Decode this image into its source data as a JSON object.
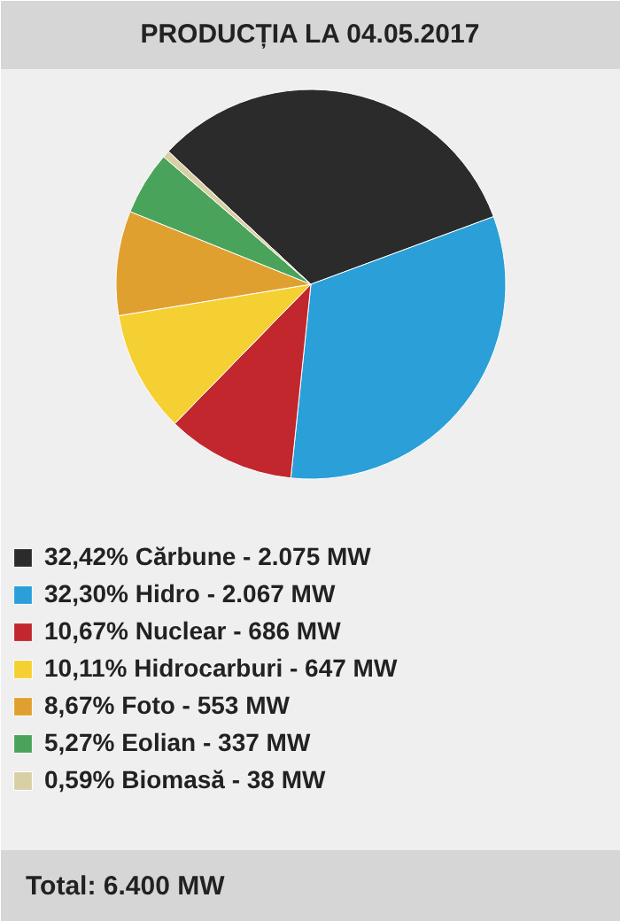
{
  "chart_data": {
    "type": "pie",
    "title": "PRODUCȚIA LA 04.05.2017",
    "categories": [
      "Cărbune - 2.075 MW",
      "Hidro - 2.067 MW",
      "Nuclear - 686 MW",
      "Hidrocarburi - 647 MW",
      "Foto - 553 MW",
      "Eolian - 337 MW",
      "Biomasă - 38 MW"
    ],
    "values": [
      32.42,
      32.3,
      10.67,
      10.11,
      8.67,
      5.27,
      0.59
    ],
    "value_labels": [
      "32,42%",
      "32,30%",
      "10,67%",
      "10,11%",
      "8,67%",
      "5,27%",
      "0,59%"
    ],
    "colors": [
      "#2b2b2b",
      "#2a9fd8",
      "#c1272d",
      "#f5d033",
      "#e0a030",
      "#4aa35a",
      "#d8cfa5"
    ],
    "legend": "bottom",
    "annotations": [
      "Total: 6.400 MW"
    ]
  }
}
